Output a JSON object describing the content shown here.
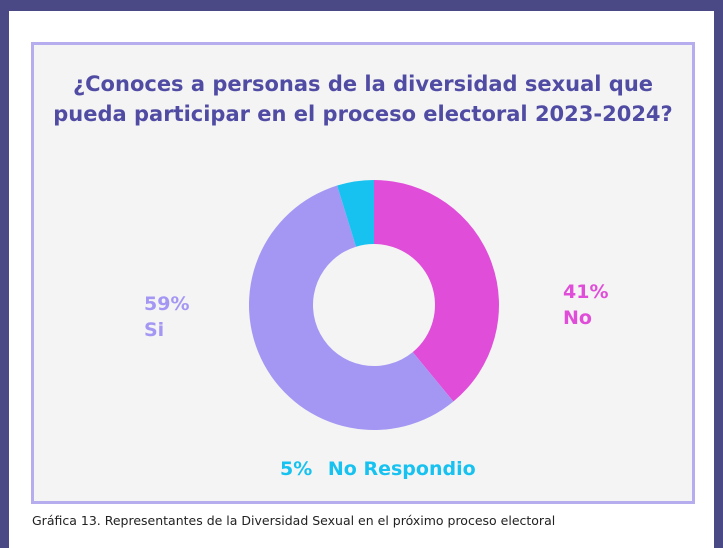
{
  "chart_data": {
    "type": "pie",
    "title_lines": [
      "¿Conoces a personas de la diversidad sexual que",
      "pueda participar en el proceso electoral 2023-2024?"
    ],
    "slices": [
      {
        "name": "No",
        "value": 41,
        "label": "41%",
        "color": "#e04ed9"
      },
      {
        "name": "Si",
        "value": 59,
        "label": "59%",
        "color": "#a497f4"
      },
      {
        "name": "No Respondio",
        "value": 5,
        "label": "5%",
        "color": "#17c2f0"
      }
    ],
    "donut": true
  },
  "caption": "Gráfica 13. Representantes de la Diversidad Sexual en el próximo proceso electoral"
}
